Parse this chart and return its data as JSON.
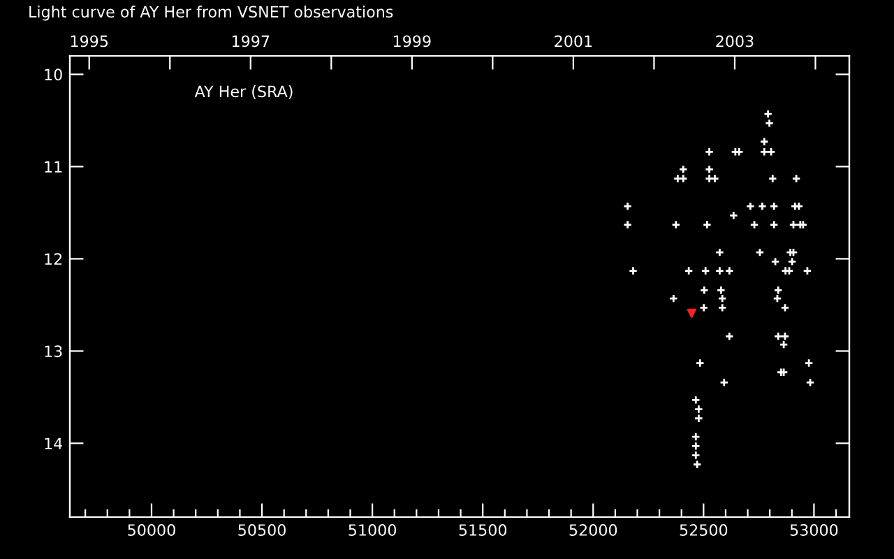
{
  "chart_data": {
    "type": "scatter",
    "title": "Light curve of AY Her from VSNET observations",
    "annotations": [
      "AY Her (SRA)"
    ],
    "series": [
      {
        "color": "#ffffff",
        "marker": "cross",
        "x": [
          52792,
          52798,
          52775,
          52526,
          52644,
          52661,
          52775,
          52806,
          52408,
          52526,
          52383,
          52408,
          52526,
          52551,
          52813,
          52920,
          52156,
          52712,
          52766,
          52819,
          52914,
          52932,
          52636,
          52156,
          52375,
          52516,
          52730,
          52819,
          52907,
          52938,
          52951,
          52573,
          52755,
          52893,
          52907,
          52825,
          52901,
          52181,
          52433,
          52509,
          52573,
          52617,
          52871,
          52888,
          52970,
          52503,
          52579,
          52838,
          52364,
          52585,
          52834,
          52501,
          52585,
          52869,
          52617,
          52838,
          52869,
          52863,
          52484,
          52977,
          52851,
          52863,
          52593,
          52983,
          52465,
          52478,
          52478,
          52465,
          52465,
          52465,
          52471
        ],
        "values": [
          10.43,
          10.53,
          10.73,
          10.84,
          10.84,
          10.84,
          10.84,
          10.84,
          11.03,
          11.03,
          11.13,
          11.13,
          11.13,
          11.13,
          11.13,
          11.13,
          11.43,
          11.43,
          11.43,
          11.43,
          11.43,
          11.43,
          11.53,
          11.63,
          11.63,
          11.63,
          11.63,
          11.63,
          11.63,
          11.63,
          11.63,
          11.93,
          11.93,
          11.93,
          11.93,
          12.03,
          12.03,
          12.13,
          12.13,
          12.13,
          12.13,
          12.13,
          12.13,
          12.13,
          12.13,
          12.34,
          12.34,
          12.34,
          12.43,
          12.43,
          12.43,
          12.53,
          12.53,
          12.53,
          12.84,
          12.84,
          12.84,
          12.93,
          13.13,
          13.13,
          13.23,
          13.23,
          13.34,
          13.34,
          13.53,
          13.63,
          13.73,
          13.93,
          14.03,
          14.13,
          14.23
        ]
      },
      {
        "color": "#ff2020",
        "marker": "triangle",
        "x": [
          52446
        ],
        "values": [
          12.59
        ]
      }
    ],
    "xlim": [
      49630,
      53160
    ],
    "ylim": [
      14.8,
      9.8
    ],
    "yticks": [
      10,
      11,
      12,
      13,
      14
    ],
    "xticks": [
      {
        "value": 49700,
        "label": null
      },
      {
        "value": 49800,
        "label": null
      },
      {
        "value": 49900,
        "label": null
      },
      50000,
      {
        "value": 50100,
        "label": null
      },
      {
        "value": 50200,
        "label": null
      },
      {
        "value": 50300,
        "label": null
      },
      {
        "value": 50400,
        "label": null
      },
      50500,
      {
        "value": 50600,
        "label": null
      },
      {
        "value": 50700,
        "label": null
      },
      {
        "value": 50800,
        "label": null
      },
      {
        "value": 50900,
        "label": null
      },
      51000,
      {
        "value": 51100,
        "label": null
      },
      {
        "value": 51200,
        "label": null
      },
      {
        "value": 51300,
        "label": null
      },
      {
        "value": 51400,
        "label": null
      },
      51500,
      {
        "value": 51600,
        "label": null
      },
      {
        "value": 51700,
        "label": null
      },
      {
        "value": 51800,
        "label": null
      },
      {
        "value": 51900,
        "label": null
      },
      52000,
      {
        "value": 52100,
        "label": null
      },
      {
        "value": 52200,
        "label": null
      },
      {
        "value": 52300,
        "label": null
      },
      {
        "value": 52400,
        "label": null
      },
      52500,
      {
        "value": 52600,
        "label": null
      },
      {
        "value": 52700,
        "label": null
      },
      {
        "value": 52800,
        "label": null
      },
      {
        "value": 52900,
        "label": null
      },
      53000,
      {
        "value": 53100,
        "label": null
      }
    ],
    "x2lim": [
      1994.76,
      2004.42
    ],
    "x2ticks": [
      1995,
      {
        "value": 1996,
        "label": null
      },
      1997,
      {
        "value": 1998,
        "label": null
      },
      1999,
      {
        "value": 2000,
        "label": null
      },
      2001,
      {
        "value": 2002,
        "label": null
      },
      2003,
      {
        "value": 2004,
        "label": null
      }
    ],
    "grid": false,
    "legend": false
  }
}
